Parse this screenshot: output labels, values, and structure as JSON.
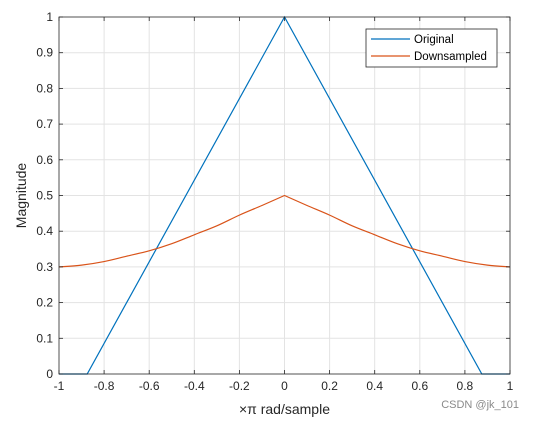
{
  "chart_data": {
    "type": "line",
    "xlabel": "×π rad/sample",
    "ylabel": "Magnitude",
    "xlim": [
      -1,
      1
    ],
    "ylim": [
      0,
      1
    ],
    "xticks": [
      -1,
      -0.8,
      -0.6,
      -0.4,
      -0.2,
      0,
      0.2,
      0.4,
      0.6,
      0.8,
      1
    ],
    "xtick_labels": [
      "-1",
      "-0.8",
      "-0.6",
      "-0.4",
      "-0.2",
      "0",
      "0.2",
      "0.4",
      "0.6",
      "0.8",
      "1"
    ],
    "yticks": [
      0,
      0.1,
      0.2,
      0.3,
      0.4,
      0.5,
      0.6,
      0.7,
      0.8,
      0.9,
      1
    ],
    "ytick_labels": [
      "0",
      "0.1",
      "0.2",
      "0.3",
      "0.4",
      "0.5",
      "0.6",
      "0.7",
      "0.8",
      "0.9",
      "1"
    ],
    "grid": true,
    "legend_position": "top-right",
    "series": [
      {
        "name": "Original",
        "color": "#0072BD",
        "x": [
          -1,
          -0.875,
          0,
          0.875,
          1
        ],
        "y": [
          0,
          0,
          1,
          0,
          0
        ]
      },
      {
        "name": "Downsampled",
        "color": "#D95319",
        "x": [
          -1,
          -0.9,
          -0.8,
          -0.7,
          -0.6,
          -0.5,
          -0.4,
          -0.3,
          -0.2,
          -0.1,
          0,
          0.1,
          0.2,
          0.3,
          0.4,
          0.5,
          0.6,
          0.7,
          0.8,
          0.9,
          1
        ],
        "y": [
          0.3,
          0.305,
          0.315,
          0.33,
          0.345,
          0.365,
          0.39,
          0.415,
          0.445,
          0.472,
          0.5,
          0.472,
          0.445,
          0.415,
          0.39,
          0.365,
          0.345,
          0.33,
          0.315,
          0.305,
          0.3
        ]
      }
    ]
  },
  "watermark": "CSDN @jk_101"
}
